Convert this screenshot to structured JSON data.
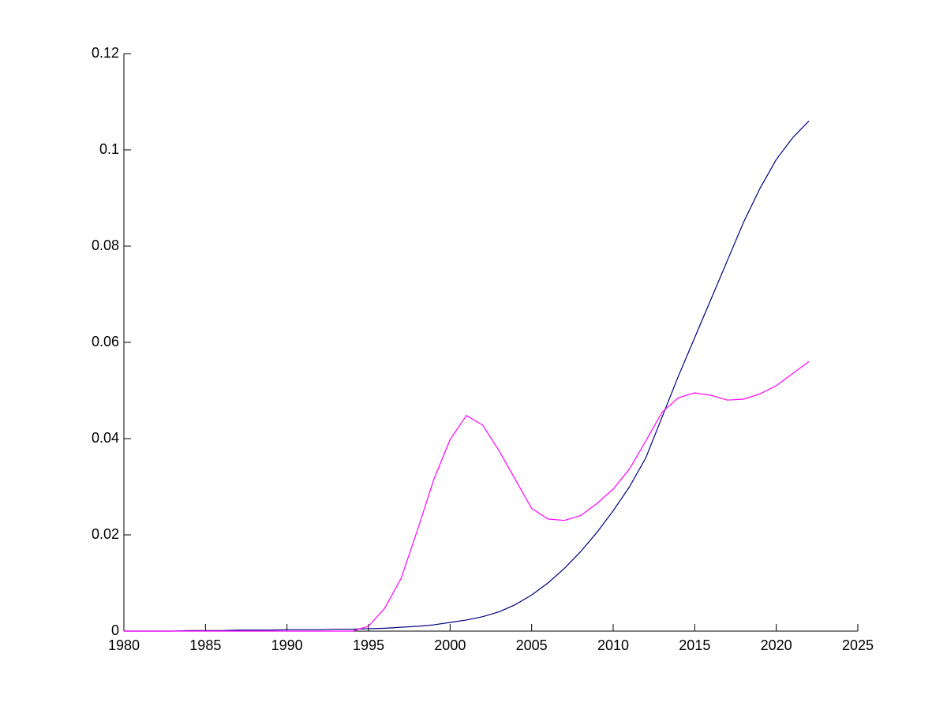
{
  "chart_data": {
    "type": "line",
    "x": [
      1980,
      1981,
      1982,
      1983,
      1984,
      1985,
      1986,
      1987,
      1988,
      1989,
      1990,
      1991,
      1992,
      1993,
      1994,
      1995,
      1996,
      1997,
      1998,
      1999,
      2000,
      2001,
      2002,
      2003,
      2004,
      2005,
      2006,
      2007,
      2008,
      2009,
      2010,
      2011,
      2012,
      2013,
      2014,
      2015,
      2016,
      2017,
      2018,
      2019,
      2020,
      2021,
      2022
    ],
    "series": [
      {
        "color": "#00007f",
        "values": [
          0,
          0,
          0,
          0,
          0.0001,
          0.0001,
          0.0001,
          0.0002,
          0.0002,
          0.0002,
          0.0003,
          0.0003,
          0.0003,
          0.0004,
          0.0004,
          0.0005,
          0.0006,
          0.0008,
          0.001,
          0.0013,
          0.0018,
          0.0023,
          0.003,
          0.004,
          0.0055,
          0.0075,
          0.01,
          0.013,
          0.0165,
          0.0205,
          0.025,
          0.03,
          0.036,
          0.0445,
          0.053,
          0.061,
          0.069,
          0.077,
          0.085,
          0.092,
          0.098,
          0.1025,
          0.106
        ]
      },
      {
        "color": "#ff00ff",
        "values": [
          0,
          0,
          0,
          0,
          0,
          0,
          0,
          0,
          0,
          0,
          0,
          0,
          0,
          0,
          0,
          0.001,
          0.0048,
          0.011,
          0.021,
          0.0315,
          0.0398,
          0.0448,
          0.0428,
          0.0375,
          0.0315,
          0.0255,
          0.0233,
          0.023,
          0.024,
          0.0265,
          0.0295,
          0.0337,
          0.0395,
          0.0455,
          0.0485,
          0.0495,
          0.049,
          0.048,
          0.0482,
          0.0493,
          0.051,
          0.0535,
          0.056
        ]
      }
    ],
    "xlim": [
      1980,
      2025
    ],
    "xticks": [
      1980,
      1985,
      1990,
      1995,
      2000,
      2005,
      2010,
      2015,
      2020,
      2025
    ],
    "ylim": [
      0,
      0.12
    ],
    "yticks": [
      0,
      0.02,
      0.04,
      0.06,
      0.08,
      0.1,
      0.12
    ]
  }
}
